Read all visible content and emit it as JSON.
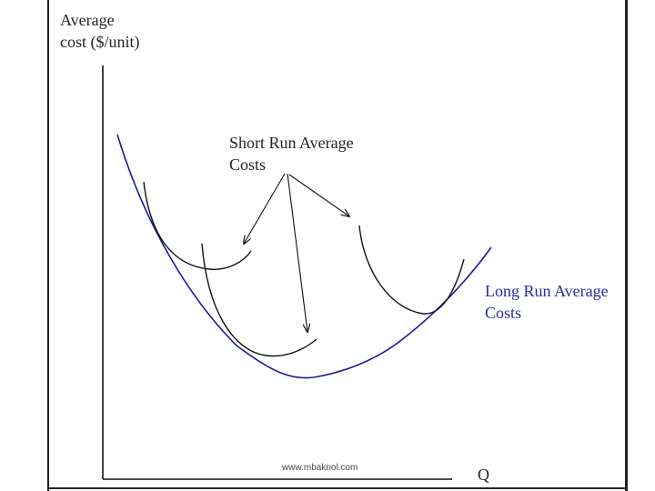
{
  "axes": {
    "y_label_line1": "Average",
    "y_label_line2": "cost ($/unit)",
    "x_label": "Q"
  },
  "labels": {
    "short_run_line1": "Short Run Average",
    "short_run_line2": "Costs",
    "long_run_line1": "Long Run Average",
    "long_run_line2": "Costs"
  },
  "watermark": "www.mbaknol.com",
  "colors": {
    "long_run_curve": "#1a1a9c",
    "short_run_curve": "#111111",
    "axis": "#111111"
  }
}
